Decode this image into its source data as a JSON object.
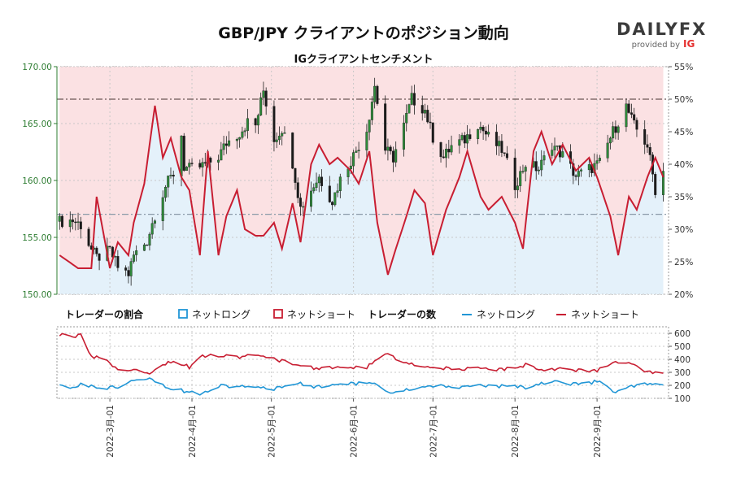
{
  "title": "GBP/JPY クライアントのポジション動向",
  "subtitle": "IGクライアントセンチメント",
  "brand": {
    "name": "DAILYFX",
    "tagline": "provided by",
    "ig": "IG",
    "color": "#3b3b3b",
    "ig_color": "#e5302f"
  },
  "colors": {
    "long": "#2196d6",
    "short": "#c81e32",
    "candle_up": "#2e8b3a",
    "candle_down": "#1a1a1a",
    "short_fill": "#fbe1e3",
    "long_fill": "#e4f1fa",
    "price_axis": "#2e7d32"
  },
  "legend_lower": {
    "ratio_title": "トレーダーの割合",
    "count_title": "トレーダーの数",
    "net_long": "ネットロング",
    "net_short": "ネットショート"
  },
  "chart_data": [
    {
      "type": "candlestick",
      "name": "price",
      "y_left_ticks": [
        "150.00",
        "155.00",
        "160.00",
        "165.00",
        "170.00"
      ],
      "ylim_left": [
        150,
        170
      ],
      "y_right_ticks": [
        "20%",
        "25%",
        "30%",
        "35%",
        "40%",
        "45%",
        "50%",
        "55%"
      ],
      "ylim_right": [
        20,
        55
      ],
      "reference_lines": [
        50,
        32.3
      ],
      "x_labels": [
        "2022-3月-01",
        "2022-4月-01",
        "2022-5月-01",
        "2022-6月-01",
        "2022-7月-01",
        "2022-8月-01",
        "2022-9月-01"
      ],
      "price_anchors": [
        [
          "2022-02-10",
          156.4
        ],
        [
          "2022-02-15",
          156.5
        ],
        [
          "2022-02-18",
          156.1
        ],
        [
          "2022-02-22",
          153.9
        ],
        [
          "2022-02-24",
          153.2
        ],
        [
          "2022-03-01",
          153.8
        ],
        [
          "2022-03-04",
          152.4
        ],
        [
          "2022-03-08",
          151.8
        ],
        [
          "2022-03-10",
          153.4
        ],
        [
          "2022-03-15",
          154.7
        ],
        [
          "2022-03-18",
          157.0
        ],
        [
          "2022-03-22",
          159.5
        ],
        [
          "2022-03-25",
          160.6
        ],
        [
          "2022-03-28",
          164.0
        ],
        [
          "2022-03-29",
          161.2
        ],
        [
          "2022-03-31",
          161.0
        ],
        [
          "2022-04-04",
          161.2
        ],
        [
          "2022-04-07",
          161.5
        ],
        [
          "2022-04-11",
          162.1
        ],
        [
          "2022-04-14",
          163.3
        ],
        [
          "2022-04-19",
          164.2
        ],
        [
          "2022-04-22",
          165.1
        ],
        [
          "2022-04-25",
          164.8
        ],
        [
          "2022-04-28",
          167.9
        ],
        [
          "2022-05-02",
          163.6
        ],
        [
          "2022-05-05",
          164.6
        ],
        [
          "2022-05-09",
          161.6
        ],
        [
          "2022-05-12",
          157.6
        ],
        [
          "2022-05-16",
          159.2
        ],
        [
          "2022-05-19",
          160.3
        ],
        [
          "2022-05-24",
          158.2
        ],
        [
          "2022-05-27",
          160.1
        ],
        [
          "2022-06-01",
          162.2
        ],
        [
          "2022-06-06",
          164.5
        ],
        [
          "2022-06-09",
          168.3
        ],
        [
          "2022-06-13",
          162.7
        ],
        [
          "2022-06-16",
          162.0
        ],
        [
          "2022-06-20",
          164.8
        ],
        [
          "2022-06-23",
          167.2
        ],
        [
          "2022-06-28",
          166.2
        ],
        [
          "2022-07-01",
          163.8
        ],
        [
          "2022-07-05",
          162.0
        ],
        [
          "2022-07-08",
          163.0
        ],
        [
          "2022-07-13",
          163.6
        ],
        [
          "2022-07-18",
          165.0
        ],
        [
          "2022-07-22",
          163.8
        ],
        [
          "2022-07-27",
          162.7
        ],
        [
          "2022-08-01",
          159.6
        ],
        [
          "2022-08-05",
          161.5
        ],
        [
          "2022-08-10",
          161.0
        ],
        [
          "2022-08-15",
          163.2
        ],
        [
          "2022-08-19",
          162.2
        ],
        [
          "2022-08-24",
          160.4
        ],
        [
          "2022-08-29",
          161.0
        ],
        [
          "2022-09-02",
          161.5
        ],
        [
          "2022-09-07",
          164.3
        ],
        [
          "2022-09-12",
          166.5
        ],
        [
          "2022-09-15",
          164.8
        ],
        [
          "2022-09-20",
          163.1
        ],
        [
          "2022-09-23",
          159.2
        ],
        [
          "2022-09-26",
          160.8
        ]
      ],
      "net_short_pct_anchors": [
        [
          "2022-02-10",
          26
        ],
        [
          "2022-02-17",
          24
        ],
        [
          "2022-02-22",
          24
        ],
        [
          "2022-02-24",
          35
        ],
        [
          "2022-03-01",
          24
        ],
        [
          "2022-03-04",
          28
        ],
        [
          "2022-03-08",
          26
        ],
        [
          "2022-03-10",
          31
        ],
        [
          "2022-03-14",
          37
        ],
        [
          "2022-03-18",
          49
        ],
        [
          "2022-03-21",
          41
        ],
        [
          "2022-03-24",
          44
        ],
        [
          "2022-03-28",
          38
        ],
        [
          "2022-03-31",
          36
        ],
        [
          "2022-04-04",
          26
        ],
        [
          "2022-04-07",
          42
        ],
        [
          "2022-04-11",
          26
        ],
        [
          "2022-04-14",
          32
        ],
        [
          "2022-04-18",
          36
        ],
        [
          "2022-04-21",
          30
        ],
        [
          "2022-04-25",
          29
        ],
        [
          "2022-04-28",
          29
        ],
        [
          "2022-05-02",
          31
        ],
        [
          "2022-05-05",
          27
        ],
        [
          "2022-05-09",
          34
        ],
        [
          "2022-05-12",
          28
        ],
        [
          "2022-05-16",
          40
        ],
        [
          "2022-05-19",
          43
        ],
        [
          "2022-05-23",
          40
        ],
        [
          "2022-05-26",
          41
        ],
        [
          "2022-05-31",
          39
        ],
        [
          "2022-06-03",
          37
        ],
        [
          "2022-06-07",
          42
        ],
        [
          "2022-06-10",
          31
        ],
        [
          "2022-06-14",
          23
        ],
        [
          "2022-06-17",
          27
        ],
        [
          "2022-06-21",
          32
        ],
        [
          "2022-06-24",
          36
        ],
        [
          "2022-06-28",
          34
        ],
        [
          "2022-07-01",
          26
        ],
        [
          "2022-07-06",
          33
        ],
        [
          "2022-07-11",
          38
        ],
        [
          "2022-07-14",
          42
        ],
        [
          "2022-07-19",
          35
        ],
        [
          "2022-07-22",
          33
        ],
        [
          "2022-07-27",
          35
        ],
        [
          "2022-08-01",
          31
        ],
        [
          "2022-08-04",
          27
        ],
        [
          "2022-08-08",
          42
        ],
        [
          "2022-08-11",
          45
        ],
        [
          "2022-08-15",
          40
        ],
        [
          "2022-08-19",
          43
        ],
        [
          "2022-08-24",
          39
        ],
        [
          "2022-08-29",
          41
        ],
        [
          "2022-09-01",
          38
        ],
        [
          "2022-09-06",
          32
        ],
        [
          "2022-09-09",
          26
        ],
        [
          "2022-09-13",
          35
        ],
        [
          "2022-09-16",
          33
        ],
        [
          "2022-09-20",
          38
        ],
        [
          "2022-09-23",
          41
        ],
        [
          "2022-09-26",
          38
        ]
      ]
    },
    {
      "type": "line",
      "name": "traders",
      "y_ticks": [
        "100",
        "200",
        "300",
        "400",
        "500",
        "600"
      ],
      "ylim": [
        100,
        650
      ],
      "net_short_anchors": [
        [
          "2022-02-10",
          590
        ],
        [
          "2022-02-15",
          560
        ],
        [
          "2022-02-18",
          600
        ],
        [
          "2022-02-22",
          420
        ],
        [
          "2022-02-28",
          400
        ],
        [
          "2022-03-04",
          310
        ],
        [
          "2022-03-10",
          330
        ],
        [
          "2022-03-16",
          300
        ],
        [
          "2022-03-21",
          360
        ],
        [
          "2022-03-25",
          390
        ],
        [
          "2022-03-31",
          340
        ],
        [
          "2022-04-04",
          420
        ],
        [
          "2022-04-08",
          440
        ],
        [
          "2022-04-12",
          430
        ],
        [
          "2022-04-19",
          420
        ],
        [
          "2022-04-25",
          430
        ],
        [
          "2022-05-01",
          400
        ],
        [
          "2022-05-06",
          390
        ],
        [
          "2022-05-12",
          350
        ],
        [
          "2022-05-17",
          330
        ],
        [
          "2022-05-24",
          340
        ],
        [
          "2022-05-30",
          330
        ],
        [
          "2022-06-06",
          340
        ],
        [
          "2022-06-10",
          400
        ],
        [
          "2022-06-14",
          450
        ],
        [
          "2022-06-17",
          400
        ],
        [
          "2022-06-23",
          360
        ],
        [
          "2022-06-30",
          340
        ],
        [
          "2022-07-06",
          330
        ],
        [
          "2022-07-12",
          320
        ],
        [
          "2022-07-18",
          330
        ],
        [
          "2022-07-25",
          320
        ],
        [
          "2022-08-01",
          330
        ],
        [
          "2022-08-05",
          360
        ],
        [
          "2022-08-11",
          320
        ],
        [
          "2022-08-17",
          330
        ],
        [
          "2022-08-23",
          320
        ],
        [
          "2022-08-29",
          310
        ],
        [
          "2022-09-02",
          320
        ],
        [
          "2022-09-08",
          380
        ],
        [
          "2022-09-14",
          360
        ],
        [
          "2022-09-20",
          300
        ],
        [
          "2022-09-26",
          290
        ]
      ],
      "net_long_anchors": [
        [
          "2022-02-10",
          190
        ],
        [
          "2022-02-15",
          180
        ],
        [
          "2022-02-18",
          210
        ],
        [
          "2022-02-22",
          190
        ],
        [
          "2022-02-28",
          180
        ],
        [
          "2022-03-04",
          190
        ],
        [
          "2022-03-10",
          250
        ],
        [
          "2022-03-16",
          260
        ],
        [
          "2022-03-21",
          200
        ],
        [
          "2022-03-25",
          170
        ],
        [
          "2022-03-31",
          150
        ],
        [
          "2022-04-04",
          140
        ],
        [
          "2022-04-08",
          170
        ],
        [
          "2022-04-12",
          200
        ],
        [
          "2022-04-19",
          190
        ],
        [
          "2022-04-25",
          180
        ],
        [
          "2022-05-01",
          170
        ],
        [
          "2022-05-06",
          200
        ],
        [
          "2022-05-12",
          210
        ],
        [
          "2022-05-17",
          190
        ],
        [
          "2022-05-24",
          200
        ],
        [
          "2022-05-30",
          210
        ],
        [
          "2022-06-06",
          220
        ],
        [
          "2022-06-10",
          210
        ],
        [
          "2022-06-14",
          140
        ],
        [
          "2022-06-17",
          150
        ],
        [
          "2022-06-23",
          170
        ],
        [
          "2022-06-30",
          200
        ],
        [
          "2022-07-06",
          190
        ],
        [
          "2022-07-12",
          180
        ],
        [
          "2022-07-18",
          200
        ],
        [
          "2022-07-25",
          190
        ],
        [
          "2022-08-01",
          200
        ],
        [
          "2022-08-05",
          180
        ],
        [
          "2022-08-11",
          220
        ],
        [
          "2022-08-17",
          230
        ],
        [
          "2022-08-23",
          210
        ],
        [
          "2022-08-29",
          220
        ],
        [
          "2022-09-02",
          230
        ],
        [
          "2022-09-08",
          140
        ],
        [
          "2022-09-14",
          190
        ],
        [
          "2022-09-20",
          210
        ],
        [
          "2022-09-26",
          190
        ]
      ]
    }
  ]
}
